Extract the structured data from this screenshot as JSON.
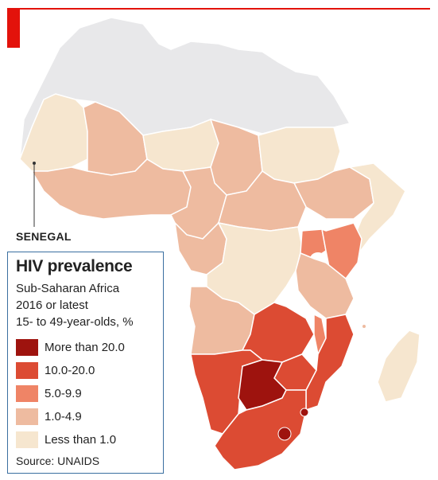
{
  "accent_color": "#e3120b",
  "callout": {
    "label": "SENEGAL"
  },
  "legend": {
    "title": "HIV prevalence",
    "subtitle_lines": [
      "Sub-Saharan Africa",
      "2016 or latest",
      "15- to 49-year-olds, %"
    ],
    "items": [
      {
        "label": "More than 20.0",
        "color": "#9e130e"
      },
      {
        "label": "10.0-20.0",
        "color": "#dc4b33"
      },
      {
        "label": "5.0-9.9",
        "color": "#ef8466"
      },
      {
        "label": "1.0-4.9",
        "color": "#eebba0"
      },
      {
        "label": "Less than 1.0",
        "color": "#f6e6cf"
      }
    ],
    "source": "Source: UNAIDS"
  },
  "colors": {
    "no_data": "#e8e8ea",
    "border": "#ffffff"
  }
}
